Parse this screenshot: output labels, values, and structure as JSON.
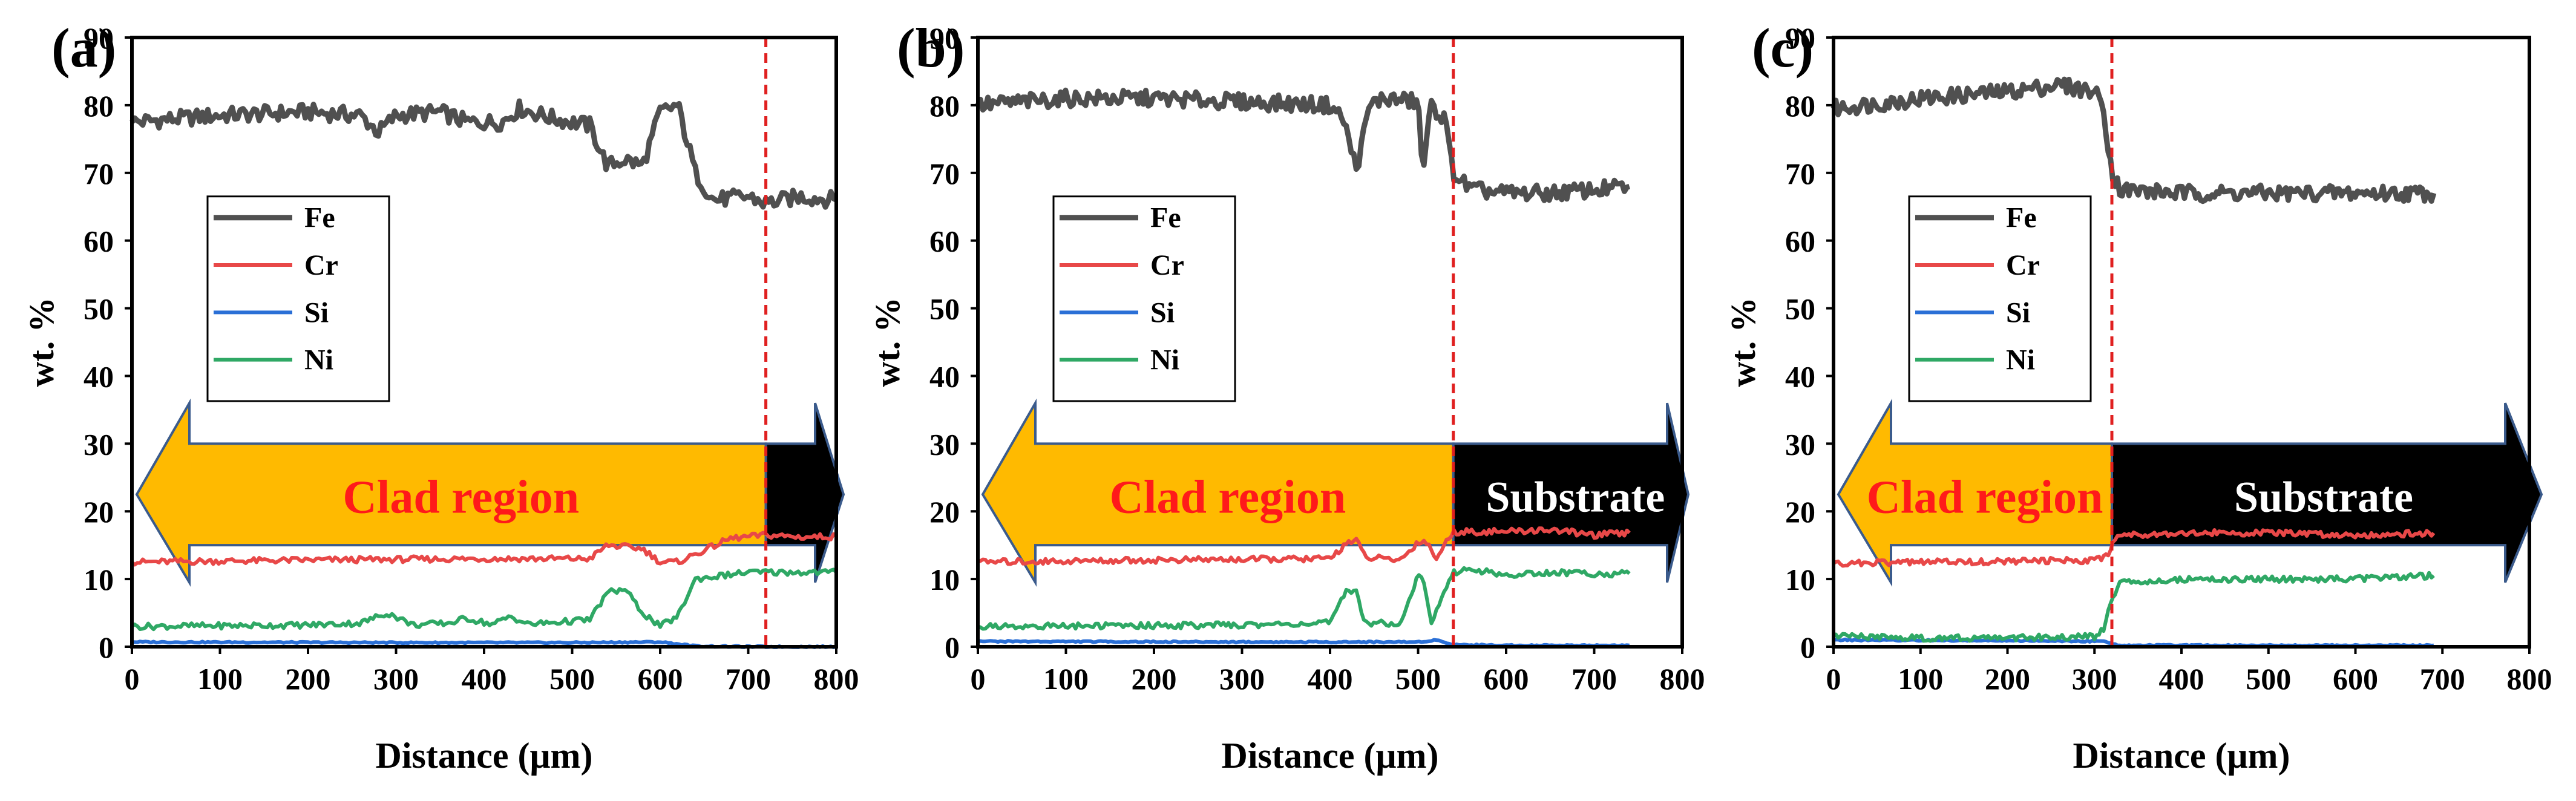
{
  "figure": {
    "x_axis_label": "Distance (μm)",
    "y_axis_label": "wt. %"
  },
  "colors": {
    "Fe": "#505050",
    "Cr": "#e84848",
    "Si": "#2a6fd6",
    "Ni": "#2fa865",
    "boundary": "#e02020",
    "clad_arrow": "#ffba00",
    "substrate_arrow": "#000000",
    "arrow_outline": "#3b5b8c"
  },
  "chart_data": [
    {
      "panel_label": "(a)",
      "type": "line",
      "title": "",
      "xlabel": "Distance (μm)",
      "ylabel": "wt. %",
      "xlim": [
        0,
        800
      ],
      "ylim": [
        0,
        90
      ],
      "x_ticks": [
        "0",
        "100",
        "200",
        "300",
        "400",
        "500",
        "600",
        "700",
        "800"
      ],
      "y_ticks": [
        "0",
        "10",
        "20",
        "30",
        "40",
        "50",
        "60",
        "70",
        "80",
        "90"
      ],
      "legend": [
        "Fe",
        "Cr",
        "Si",
        "Ni"
      ],
      "legend_position": "center-left",
      "boundary_x": 720,
      "clad_label": "Clad region",
      "substrate_label": "",
      "series": [
        {
          "name": "Fe",
          "x": [
            0,
            100,
            200,
            260,
            280,
            300,
            350,
            380,
            420,
            440,
            480,
            520,
            540,
            560,
            580,
            600,
            620,
            640,
            660,
            700,
            720,
            760,
            800
          ],
          "y": [
            77.5,
            78.5,
            79,
            78.5,
            76,
            78.5,
            79,
            77.5,
            77.5,
            79.5,
            78,
            77,
            71,
            72,
            71,
            79,
            80,
            70,
            66,
            66.5,
            65.5,
            66.5,
            66
          ]
        },
        {
          "name": "Cr",
          "x": [
            0,
            200,
            400,
            520,
            540,
            580,
            600,
            620,
            680,
            720,
            760,
            800
          ],
          "y": [
            12.5,
            12.8,
            13,
            13,
            15,
            14.5,
            12.5,
            12.5,
            16,
            16.5,
            16.2,
            16.3
          ]
        },
        {
          "name": "Si",
          "x": [
            0,
            300,
            500,
            600,
            640,
            700,
            800
          ],
          "y": [
            0.7,
            0.6,
            0.6,
            0.7,
            0.1,
            0,
            0
          ]
        },
        {
          "name": "Ni",
          "x": [
            0,
            200,
            260,
            290,
            320,
            360,
            380,
            410,
            430,
            450,
            500,
            520,
            540,
            560,
            580,
            600,
            620,
            640,
            700,
            800
          ],
          "y": [
            3,
            3.2,
            3.5,
            5,
            3.2,
            3.5,
            4.2,
            3.3,
            4.5,
            3.3,
            3.8,
            4,
            8,
            8.5,
            5,
            3,
            4.5,
            10,
            11,
            11
          ]
        }
      ]
    },
    {
      "panel_label": "(b)",
      "type": "line",
      "title": "",
      "xlabel": "Distance (μm)",
      "ylabel": "wt. %",
      "xlim": [
        0,
        800
      ],
      "ylim": [
        0,
        90
      ],
      "x_ticks": [
        "0",
        "100",
        "200",
        "300",
        "400",
        "500",
        "600",
        "700",
        "800"
      ],
      "y_ticks": [
        "0",
        "10",
        "20",
        "30",
        "40",
        "50",
        "60",
        "70",
        "80",
        "90"
      ],
      "legend": [
        "Fe",
        "Cr",
        "Si",
        "Ni"
      ],
      "legend_position": "center-left",
      "boundary_x": 540,
      "clad_label": "Clad region",
      "substrate_label": "Substrate",
      "series": [
        {
          "name": "Fe",
          "x": [
            0,
            100,
            200,
            300,
            400,
            415,
            430,
            445,
            460,
            500,
            505,
            515,
            530,
            540,
            560,
            600,
            650,
            700,
            740
          ],
          "y": [
            80,
            81,
            81,
            80.5,
            80,
            78,
            70.5,
            80,
            81,
            80.5,
            70,
            80,
            78,
            70,
            67.5,
            67,
            67,
            67.5,
            68
          ]
        },
        {
          "name": "Cr",
          "x": [
            0,
            200,
            400,
            420,
            430,
            440,
            480,
            500,
            510,
            520,
            540,
            600,
            650,
            700,
            740
          ],
          "y": [
            12.5,
            12.8,
            13,
            15.5,
            15.7,
            13.2,
            12.8,
            15.5,
            15.5,
            13,
            17,
            17,
            17.3,
            16.5,
            16.8
          ]
        },
        {
          "name": "Si",
          "x": [
            0,
            300,
            500,
            520,
            540,
            600,
            740
          ],
          "y": [
            0.8,
            0.7,
            0.7,
            1,
            0.3,
            0.2,
            0.2
          ]
        },
        {
          "name": "Ni",
          "x": [
            0,
            300,
            400,
            420,
            430,
            440,
            480,
            500,
            505,
            515,
            530,
            540,
            560,
            600,
            650,
            700,
            740
          ],
          "y": [
            3,
            3.2,
            3.5,
            8.5,
            8,
            3.5,
            3.5,
            10.5,
            10.5,
            3.5,
            8,
            11,
            11.5,
            10.5,
            11,
            10.8,
            10.8
          ]
        }
      ]
    },
    {
      "panel_label": "(c)",
      "type": "line",
      "title": "",
      "xlabel": "Distance (μm)",
      "ylabel": "wt. %",
      "xlim": [
        0,
        800
      ],
      "ylim": [
        0,
        90
      ],
      "x_ticks": [
        "0",
        "100",
        "200",
        "300",
        "400",
        "500",
        "600",
        "700",
        "800"
      ],
      "y_ticks": [
        "0",
        "10",
        "20",
        "30",
        "40",
        "50",
        "60",
        "70",
        "80",
        "90"
      ],
      "legend": [
        "Fe",
        "Cr",
        "Si",
        "Ni"
      ],
      "legend_position": "center-left",
      "boundary_x": 320,
      "clad_label": "Clad region",
      "substrate_label": "Substrate",
      "series": [
        {
          "name": "Fe",
          "x": [
            0,
            100,
            200,
            260,
            300,
            310,
            320,
            330,
            400,
            500,
            600,
            690
          ],
          "y": [
            79.5,
            81,
            82,
            83,
            82,
            80,
            70,
            67.5,
            67,
            67,
            67,
            67
          ]
        },
        {
          "name": "Cr",
          "x": [
            0,
            100,
            200,
            300,
            315,
            325,
            400,
            500,
            600,
            690
          ],
          "y": [
            12.3,
            12.5,
            12.6,
            12.8,
            13.5,
            16.5,
            16.8,
            16.8,
            16.5,
            16.8
          ]
        },
        {
          "name": "Si",
          "x": [
            0,
            200,
            310,
            330,
            400,
            690
          ],
          "y": [
            1,
            0.9,
            0.8,
            0.2,
            0.2,
            0.2
          ]
        },
        {
          "name": "Ni",
          "x": [
            0,
            100,
            200,
            300,
            310,
            320,
            330,
            400,
            500,
            600,
            690
          ],
          "y": [
            1.5,
            1.3,
            1.3,
            1.5,
            2.5,
            7,
            9.5,
            10,
            10,
            10,
            10.5
          ]
        }
      ]
    }
  ]
}
